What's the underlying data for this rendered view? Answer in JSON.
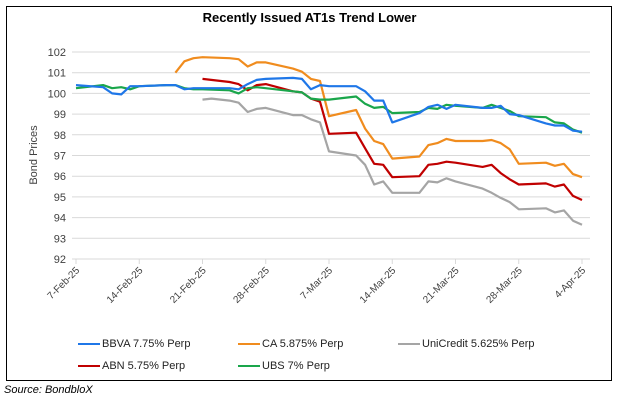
{
  "chart_data": {
    "type": "line",
    "title": "Recently Issued AT1s Trend Lower",
    "xlabel": "",
    "ylabel": "Bond Prices",
    "ylim": [
      92,
      102
    ],
    "yticks": [
      92,
      93,
      94,
      95,
      96,
      97,
      98,
      99,
      100,
      101,
      102
    ],
    "xlim_days": [
      0,
      56
    ],
    "x_start_date": "7-Feb-25",
    "xticks": [
      {
        "label": "7-Feb-25",
        "day": 0
      },
      {
        "label": "14-Feb-25",
        "day": 7
      },
      {
        "label": "21-Feb-25",
        "day": 14
      },
      {
        "label": "28-Feb-25",
        "day": 21
      },
      {
        "label": "7-Mar-25",
        "day": 28
      },
      {
        "label": "14-Mar-25",
        "day": 35
      },
      {
        "label": "21-Mar-25",
        "day": 42
      },
      {
        "label": "28-Mar-25",
        "day": 49
      },
      {
        "label": "4-Apr-25",
        "day": 56
      }
    ],
    "grid": true,
    "legend_position": "bottom",
    "series": [
      {
        "name": "BBVA 7.75% Perp",
        "color": "#1f77e8",
        "x_days": [
          0,
          3,
          4,
          5,
          6,
          7,
          10,
          11,
          12,
          13,
          14,
          17,
          18,
          19,
          20,
          21,
          24,
          25,
          26,
          27,
          28,
          31,
          32,
          33,
          34,
          35,
          38,
          39,
          40,
          41,
          42,
          45,
          46,
          47,
          48,
          49,
          52,
          53,
          54,
          55,
          56
        ],
        "values": [
          100.4,
          100.3,
          100.0,
          99.95,
          100.35,
          100.35,
          100.4,
          100.4,
          100.2,
          100.25,
          100.25,
          100.25,
          100.2,
          100.45,
          100.65,
          100.7,
          100.75,
          100.7,
          100.2,
          100.4,
          100.35,
          100.35,
          100.1,
          99.65,
          99.65,
          98.6,
          99.05,
          99.35,
          99.45,
          99.25,
          99.45,
          99.3,
          99.3,
          99.4,
          99.0,
          98.95,
          98.55,
          98.45,
          98.45,
          98.2,
          98.15
        ]
      },
      {
        "name": "CA 5.875% Perp",
        "color": "#f08c1e",
        "x_days": [
          11,
          12,
          13,
          14,
          17,
          18,
          19,
          20,
          21,
          24,
          25,
          26,
          27,
          28,
          31,
          32,
          33,
          34,
          35,
          38,
          39,
          40,
          41,
          42,
          45,
          46,
          47,
          48,
          49,
          52,
          53,
          54,
          55,
          56
        ],
        "values": [
          101.0,
          101.55,
          101.7,
          101.75,
          101.7,
          101.65,
          101.3,
          101.5,
          101.5,
          101.2,
          101.05,
          100.7,
          100.6,
          98.9,
          99.2,
          98.3,
          97.7,
          97.55,
          96.85,
          96.95,
          97.5,
          97.6,
          97.8,
          97.7,
          97.7,
          97.75,
          97.6,
          97.3,
          96.6,
          96.65,
          96.5,
          96.6,
          96.1,
          95.95
        ]
      },
      {
        "name": "UniCredit 5.625% Perp",
        "color": "#a5a5a5",
        "x_days": [
          14,
          15,
          17,
          18,
          19,
          20,
          21,
          24,
          25,
          26,
          27,
          28,
          31,
          32,
          33,
          34,
          35,
          38,
          39,
          40,
          41,
          42,
          45,
          46,
          47,
          48,
          49,
          52,
          53,
          54,
          55,
          56
        ],
        "values": [
          99.7,
          99.75,
          99.65,
          99.55,
          99.1,
          99.25,
          99.3,
          98.95,
          98.95,
          98.75,
          98.6,
          97.2,
          97.0,
          96.55,
          95.6,
          95.75,
          95.2,
          95.2,
          95.75,
          95.7,
          95.9,
          95.75,
          95.4,
          95.2,
          94.95,
          94.75,
          94.4,
          94.45,
          94.25,
          94.35,
          93.85,
          93.65
        ]
      },
      {
        "name": "ABN 5.75% Perp",
        "color": "#c00000",
        "x_days": [
          14,
          17,
          18,
          19,
          20,
          21,
          24,
          25,
          26,
          27,
          28,
          31,
          32,
          33,
          34,
          35,
          38,
          39,
          40,
          41,
          42,
          45,
          46,
          47,
          48,
          49,
          52,
          53,
          54,
          55,
          56
        ],
        "values": [
          100.7,
          100.55,
          100.45,
          100.15,
          100.4,
          100.45,
          100.1,
          100.05,
          99.75,
          99.6,
          98.05,
          98.1,
          97.35,
          96.6,
          96.55,
          95.95,
          96.0,
          96.55,
          96.6,
          96.7,
          96.65,
          96.45,
          96.55,
          96.15,
          95.85,
          95.6,
          95.65,
          95.5,
          95.6,
          95.05,
          94.85
        ]
      },
      {
        "name": "UBS 7% Perp",
        "color": "#1aa64b",
        "x_days": [
          0,
          3,
          4,
          5,
          6,
          7,
          10,
          11,
          12,
          13,
          14,
          17,
          18,
          19,
          20,
          21,
          24,
          25,
          26,
          27,
          28,
          31,
          32,
          33,
          34,
          35,
          38,
          39,
          40,
          41,
          42,
          45,
          46,
          47,
          48,
          49,
          52,
          53,
          54,
          55,
          56
        ],
        "values": [
          100.25,
          100.4,
          100.25,
          100.3,
          100.2,
          100.35,
          100.4,
          100.4,
          100.25,
          100.2,
          100.2,
          100.15,
          100.0,
          100.25,
          100.3,
          100.25,
          100.1,
          100.05,
          99.75,
          99.7,
          99.7,
          99.85,
          99.5,
          99.3,
          99.35,
          99.05,
          99.1,
          99.3,
          99.25,
          99.45,
          99.4,
          99.3,
          99.45,
          99.3,
          99.15,
          98.9,
          98.85,
          98.6,
          98.55,
          98.25,
          98.1
        ]
      }
    ]
  },
  "legend": {
    "items": [
      {
        "label": "BBVA 7.75% Perp",
        "color": "#1f77e8"
      },
      {
        "label": "CA 5.875% Perp",
        "color": "#f08c1e"
      },
      {
        "label": "UniCredit 5.625% Perp",
        "color": "#a5a5a5"
      },
      {
        "label": "ABN 5.75% Perp",
        "color": "#c00000"
      },
      {
        "label": "UBS 7% Perp",
        "color": "#1aa64b"
      }
    ]
  },
  "source": "Source: BondbloX"
}
